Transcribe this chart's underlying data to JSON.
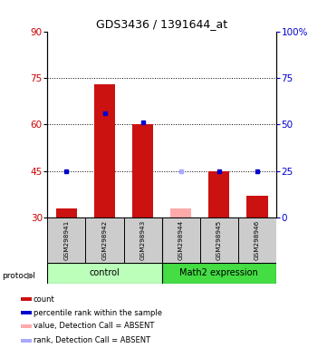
{
  "title": "GDS3436 / 1391644_at",
  "samples": [
    "GSM298941",
    "GSM298942",
    "GSM298943",
    "GSM298944",
    "GSM298945",
    "GSM298946"
  ],
  "left_yaxis": {
    "min": 30,
    "max": 90,
    "ticks": [
      30,
      45,
      60,
      75,
      90
    ],
    "color": "#cc0000"
  },
  "right_yaxis": {
    "min": 0,
    "max": 100,
    "ticks": [
      0,
      25,
      50,
      75,
      100
    ],
    "color": "#0000cc"
  },
  "bars_count": [
    33,
    73,
    60,
    null,
    45,
    37
  ],
  "bars_absent": [
    null,
    null,
    null,
    33,
    null,
    null
  ],
  "dots_rank": [
    25,
    56,
    51,
    null,
    25,
    25
  ],
  "dots_rank_absent": [
    null,
    null,
    null,
    25,
    null,
    null
  ],
  "bar_color": "#cc1111",
  "bar_absent_color": "#ffaaaa",
  "dot_color": "#0000cc",
  "dot_absent_color": "#aaaaff",
  "bar_width": 0.55,
  "bg_color": "#ffffff",
  "plot_bg": "#ffffff",
  "group1_color": "#bbffbb",
  "group2_color": "#44dd44",
  "sample_box_color": "#cccccc",
  "legend": [
    {
      "label": "count",
      "color": "#cc1111"
    },
    {
      "label": "percentile rank within the sample",
      "color": "#0000cc"
    },
    {
      "label": "value, Detection Call = ABSENT",
      "color": "#ffaaaa"
    },
    {
      "label": "rank, Detection Call = ABSENT",
      "color": "#aaaaff"
    }
  ]
}
